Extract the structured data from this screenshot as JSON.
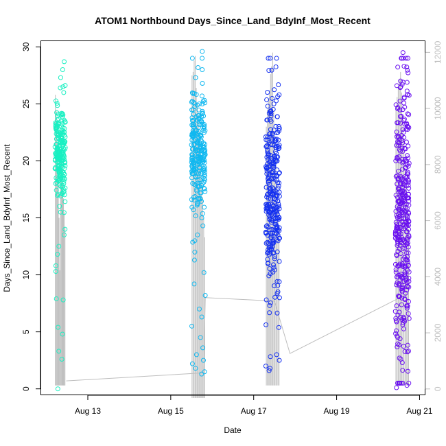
{
  "chart_data": {
    "type": "scatter",
    "title": "ATOM1 Northbound Days_Since_Land_BdyInf_Most_Recent",
    "xlabel": "Date",
    "ylabel": "Days_Since_Land_BdyInf_Most_Recent",
    "x_ticks": [
      "Aug 13",
      "Aug 15",
      "Aug 17",
      "Aug 19",
      "Aug 21"
    ],
    "xlim": [
      "2024-08-11T21:00",
      "2024-08-21T03:00"
    ],
    "ylim": [
      -0.5,
      30.5
    ],
    "y_ticks": [
      0,
      5,
      10,
      15,
      20,
      25,
      30
    ],
    "y2lim": [
      -200,
      12400
    ],
    "y2_ticks": [
      0,
      2000,
      4000,
      6000,
      8000,
      10000,
      12000
    ],
    "series_colors": [
      "#19f0c2",
      "#10b8f0",
      "#1430f0",
      "#6a10f0"
    ],
    "line_color": "#bdbdbd",
    "grid": false,
    "legend": "none",
    "clusters": [
      {
        "x_range": [
          "2024-08-12T05:00",
          "2024-08-12T11:00"
        ],
        "y_mean": 20.8,
        "y_sd": 2.2,
        "n": 220,
        "outliers": [
          28.7,
          28.0,
          27.3,
          26.5,
          15.5,
          14.0,
          13.5,
          12.5,
          11.8,
          10.8,
          10.3,
          7.9,
          7.8,
          5.4,
          4.8,
          3.3,
          2.6,
          0.0
        ],
        "bars_top": [
          25.8,
          24.4,
          23.0,
          21.6,
          19.4,
          15.0,
          10.4,
          21.0,
          20.4,
          19.9,
          18.0,
          16.7,
          15.5,
          14.2
        ],
        "bars_bottom": 0.3
      },
      {
        "x_range": [
          "2024-08-15T12:00",
          "2024-08-15T20:00"
        ],
        "y_mean": 21.0,
        "y_sd": 2.4,
        "n": 240,
        "outliers": [
          29.6,
          29.0,
          28.0,
          27.3,
          26.8,
          15.0,
          14.3,
          13.5,
          12.0,
          11.3,
          10.2,
          9.2,
          8.2,
          7.0,
          6.3,
          5.5,
          4.5,
          3.6,
          3.0,
          2.5,
          2.2,
          1.8,
          1.5,
          1.3
        ],
        "bars_top": [
          27.5,
          27.8,
          28.8,
          29.2,
          26.4,
          25.0,
          23.5,
          22.0,
          20.3,
          18.5,
          16.8,
          15.0,
          13.3
        ],
        "bars_bottom": -0.8
      },
      {
        "x_range": [
          "2024-08-17T07:00",
          "2024-08-17T15:00"
        ],
        "y_mean": 16.5,
        "y_sd": 4.8,
        "n": 300,
        "outliers": [
          25.8,
          25.0,
          24.4,
          3.0,
          2.5,
          2.0,
          1.8,
          1.6
        ],
        "bars_top": [
          23.0,
          24.5,
          25.5,
          26.2,
          27.6,
          28.3,
          29.5,
          24.4,
          22.2,
          20.3,
          18.3,
          16.2,
          14.3
        ],
        "bars_bottom": 0.3
      },
      {
        "x_range": [
          "2024-08-20T10:00",
          "2024-08-20T18:00"
        ],
        "y_mean": 15.0,
        "y_sd": 6.2,
        "n": 380,
        "outliers": [
          29.5,
          28.3,
          27.0,
          26.5,
          0.5,
          0.3,
          0.1,
          2.3,
          2.7
        ],
        "bars_top": [
          24.6,
          25.6,
          26.5,
          27.2,
          27.8,
          26.0,
          24.0,
          22.0,
          20.0,
          18.0,
          16.0,
          14.0
        ],
        "bars_bottom": 0.3
      }
    ],
    "connector_line": [
      [
        "2024-08-12T11:30",
        0.7
      ],
      [
        "2024-08-15T19:00",
        1.4
      ],
      [
        "2024-08-15T20:00",
        8.0
      ],
      [
        "2024-08-17T12:00",
        7.7
      ],
      [
        "2024-08-17T21:00",
        3.1
      ],
      [
        "2024-08-20T16:30",
        8.3
      ]
    ]
  }
}
